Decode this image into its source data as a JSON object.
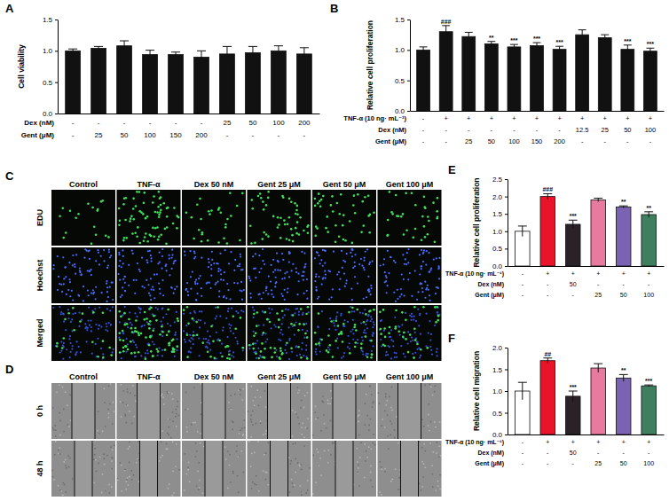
{
  "chart_data": [
    {
      "type": "bar",
      "panel_label": "A",
      "y_label": "Cell viability",
      "categories": [
        null,
        null,
        null,
        null,
        null,
        null,
        null,
        null,
        null,
        null
      ],
      "values": [
        1,
        1.04,
        1.08,
        0.94,
        0.94,
        0.9,
        0.95,
        0.97,
        1,
        0.95
      ],
      "errors": [
        0.03,
        0.03,
        0.08,
        0.07,
        0.04,
        0.1,
        0.12,
        0.1,
        0.08,
        0.1
      ],
      "color": "#111111",
      "ylim": [
        0,
        1.5
      ],
      "yticks": [
        {
          "value": 0,
          "label": "0.0"
        },
        {
          "value": 0.5,
          "label": "0.5"
        },
        {
          "value": 1,
          "label": "1.0"
        },
        {
          "value": 1.5,
          "label": "1.5"
        }
      ],
      "table": {
        "rows": [
          {
            "label": "Dex (nM)",
            "cells": [
              "-",
              "-",
              "-",
              "-",
              "-",
              "-",
              "25",
              "50",
              "100",
              "200"
            ]
          },
          {
            "label": "Gent (μM)",
            "cells": [
              "-",
              "25",
              "50",
              "100",
              "150",
              "200",
              "-",
              "-",
              "-",
              "-"
            ]
          }
        ]
      }
    },
    {
      "type": "bar",
      "panel_label": "B",
      "y_label": "Relative cell proliferation",
      "categories": [
        null,
        null,
        null,
        null,
        null,
        null,
        null,
        null,
        null,
        null,
        null
      ],
      "values": [
        1,
        1.3,
        1.22,
        1.1,
        1.05,
        1.07,
        1.01,
        1.25,
        1.2,
        1.01,
        0.98
      ],
      "errors": [
        0.05,
        0.1,
        0.07,
        0.04,
        0.04,
        0.05,
        0.05,
        0.08,
        0.05,
        0.07,
        0.05
      ],
      "significance": [
        null,
        "###",
        null,
        "**",
        "***",
        "***",
        "***",
        null,
        null,
        "***",
        "***"
      ],
      "color": "#111111",
      "ylim": [
        0,
        1.5
      ],
      "yticks": [
        {
          "value": 0,
          "label": "0.0"
        },
        {
          "value": 0.5,
          "label": "0.5"
        },
        {
          "value": 1,
          "label": "1.0"
        },
        {
          "value": 1.5,
          "label": "1.5"
        }
      ],
      "table": {
        "rows": [
          {
            "label": "TNF-α (10 ng· mL⁻¹)",
            "cells": [
              "-",
              "+",
              "+",
              "+",
              "+",
              "+",
              "+",
              "+",
              "+",
              "+",
              "+"
            ]
          },
          {
            "label": "Dex (nM)",
            "cells": [
              "-",
              "-",
              "-",
              "-",
              "-",
              "-",
              "-",
              "12.5",
              "25",
              "50",
              "100"
            ]
          },
          {
            "label": "Gent (μM)",
            "cells": [
              "-",
              "-",
              "25",
              "50",
              "100",
              "150",
              "200",
              "-",
              "-",
              "-",
              "-"
            ]
          }
        ]
      }
    },
    {
      "type": "bar",
      "panel_label": "E",
      "y_label": "Relative cell proliferation",
      "categories": [
        null,
        null,
        null,
        null,
        null,
        null
      ],
      "values": [
        1,
        2,
        1.2,
        1.9,
        1.7,
        1.48
      ],
      "errors": [
        0.15,
        0.08,
        0.12,
        0.05,
        0.03,
        0.08
      ],
      "significance": [
        null,
        "###",
        "***",
        null,
        "**",
        "**"
      ],
      "colors": [
        "#ffffff",
        "#e8152a",
        "#2a2226",
        "#e87aa0",
        "#7b63b3",
        "#3f7f5f"
      ],
      "ylim": [
        0,
        2.5
      ],
      "yticks": [
        {
          "value": 0,
          "label": "0.0"
        },
        {
          "value": 0.5,
          "label": "0.5"
        },
        {
          "value": 1,
          "label": "1.0"
        },
        {
          "value": 1.5,
          "label": "1.5"
        },
        {
          "value": 2,
          "label": "2.0"
        },
        {
          "value": 2.5,
          "label": "2.5"
        }
      ],
      "table": {
        "rows": [
          {
            "label": "TNF-α (10 ng· mL⁻¹)",
            "cells": [
              "-",
              "+",
              "+",
              "+",
              "+",
              "+"
            ]
          },
          {
            "label": "Dex (nM)",
            "cells": [
              "-",
              "-",
              "50",
              "-",
              "-",
              "-"
            ]
          },
          {
            "label": "Gent (μM)",
            "cells": [
              "-",
              "-",
              "-",
              "25",
              "50",
              "100"
            ]
          }
        ]
      }
    },
    {
      "type": "bar",
      "panel_label": "F",
      "y_label": "Relative cell migration",
      "categories": [
        null,
        null,
        null,
        null,
        null,
        null
      ],
      "values": [
        1,
        1.7,
        0.88,
        1.53,
        1.3,
        1.12
      ],
      "errors": [
        0.2,
        0.06,
        0.12,
        0.1,
        0.08,
        0.02
      ],
      "significance": [
        null,
        "##",
        "***",
        null,
        "**",
        "***"
      ],
      "colors": [
        "#ffffff",
        "#e8152a",
        "#2a2226",
        "#e87aa0",
        "#7b63b3",
        "#3f7f5f"
      ],
      "ylim": [
        0,
        2
      ],
      "yticks": [
        {
          "value": 0,
          "label": "0.0"
        },
        {
          "value": 0.5,
          "label": "0.5"
        },
        {
          "value": 1,
          "label": "1.0"
        },
        {
          "value": 1.5,
          "label": "1.5"
        },
        {
          "value": 2,
          "label": "2.0"
        }
      ],
      "table": {
        "rows": [
          {
            "label": "TNF-α (10 ng· mL⁻¹)",
            "cells": [
              "-",
              "+",
              "+",
              "+",
              "+",
              "+"
            ]
          },
          {
            "label": "Dex (nM)",
            "cells": [
              "-",
              "-",
              "50",
              "-",
              "-",
              "-"
            ]
          },
          {
            "label": "Gent (μM)",
            "cells": [
              "-",
              "-",
              "-",
              "25",
              "50",
              "100"
            ]
          }
        ]
      }
    }
  ],
  "image_panels": [
    {
      "panel_label": "C",
      "columns": [
        "Control",
        "TNF-α",
        "Dex 50 nM",
        "Gent 25 μM",
        "Gent 50 μM",
        "Gent 100 μM"
      ],
      "rows": [
        "EDU",
        "Hoechst",
        "Merged"
      ]
    },
    {
      "panel_label": "D",
      "columns": [
        "Control",
        "TNF-α",
        "Dex 50 nM",
        "Gent 25 μM",
        "Gent 50 μM",
        "Gent 100 μM"
      ],
      "rows": [
        "0 h",
        "48 h"
      ]
    }
  ]
}
